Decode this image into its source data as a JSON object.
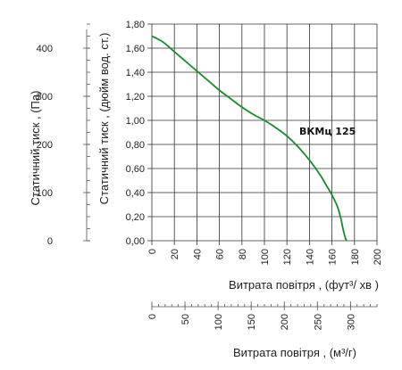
{
  "chart_data": {
    "type": "line",
    "grid": true,
    "axes": {
      "y_left_outer": {
        "label": "Статичний тиск , (Па)",
        "range": [
          0,
          450
        ],
        "ticks": [
          0,
          100,
          200,
          300,
          400
        ],
        "tick_labels": [
          "0",
          "100",
          "200",
          "300",
          "400"
        ]
      },
      "y_left_inner": {
        "label": "Статичний тиск , (дюйм вод. ст.)",
        "range": [
          0,
          1.8
        ],
        "ticks": [
          0,
          0.2,
          0.4,
          0.6,
          0.8,
          1.0,
          1.2,
          1.4,
          1.6,
          1.8
        ],
        "tick_labels": [
          "0,00",
          "0,20",
          "0,40",
          "0,60",
          "0,80",
          "1,00",
          "1,20",
          "1,40",
          "1,60",
          "1,80"
        ]
      },
      "x_primary": {
        "label": "Витрата повітря , (фут³/  хв )",
        "range": [
          0,
          200
        ],
        "ticks": [
          0,
          20,
          40,
          60,
          80,
          100,
          120,
          140,
          160,
          180,
          200
        ],
        "tick_labels": [
          "0",
          "20",
          "40",
          "60",
          "80",
          "100",
          "120",
          "140",
          "160",
          "180",
          "200"
        ]
      },
      "x_secondary": {
        "label": "Витрата повітря , (м³/г)",
        "range": [
          0,
          340
        ],
        "ticks": [
          0,
          50,
          100,
          150,
          200,
          250,
          300
        ],
        "tick_labels": [
          "0",
          "50",
          "100",
          "150",
          "200",
          "250",
          "300"
        ]
      }
    },
    "series": [
      {
        "name": "ВКМц 125",
        "color": "#1a8a2e",
        "x": [
          0,
          10,
          20,
          30,
          40,
          50,
          60,
          70,
          80,
          90,
          100,
          110,
          120,
          130,
          140,
          150,
          155,
          160,
          165,
          168,
          170,
          172,
          173
        ],
        "y": [
          1.7,
          1.65,
          1.57,
          1.49,
          1.41,
          1.33,
          1.25,
          1.18,
          1.11,
          1.05,
          1.0,
          0.94,
          0.87,
          0.78,
          0.67,
          0.54,
          0.46,
          0.38,
          0.28,
          0.18,
          0.09,
          0.02,
          0.0
        ]
      }
    ]
  }
}
